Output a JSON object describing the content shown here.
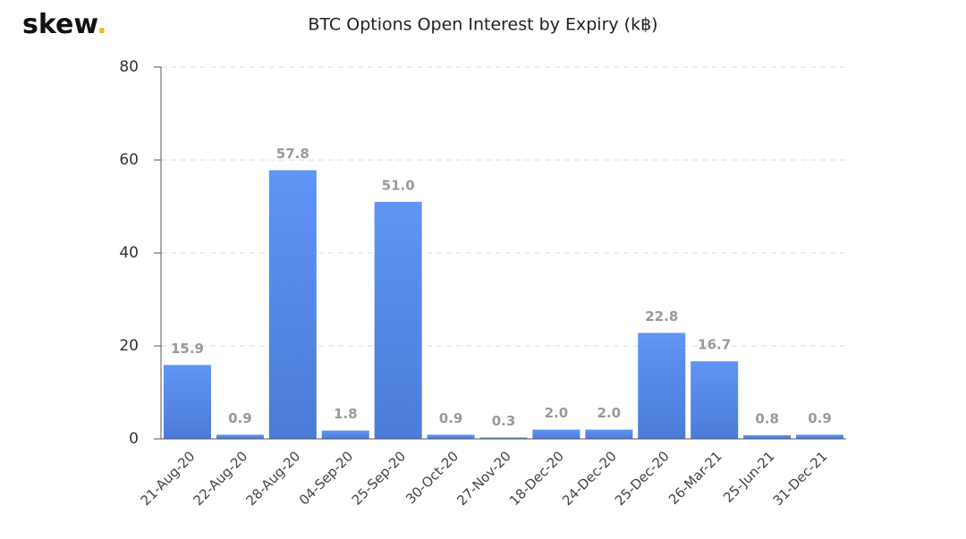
{
  "logo": {
    "text": "skew",
    "dot": "."
  },
  "chart_data": {
    "type": "bar",
    "title": "BTC Options Open Interest by Expiry (k฿)",
    "categories": [
      "21-Aug-20",
      "22-Aug-20",
      "28-Aug-20",
      "04-Sep-20",
      "25-Sep-20",
      "30-Oct-20",
      "27-Nov-20",
      "18-Dec-20",
      "24-Dec-20",
      "25-Dec-20",
      "26-Mar-21",
      "25-Jun-21",
      "31-Dec-21"
    ],
    "values": [
      15.9,
      0.9,
      57.8,
      1.8,
      51.0,
      0.9,
      0.3,
      2.0,
      2.0,
      22.8,
      16.7,
      0.8,
      0.9
    ],
    "value_labels": [
      "15.9",
      "0.9",
      "57.8",
      "1.8",
      "51.0",
      "0.9",
      "0.3",
      "2.0",
      "2.0",
      "22.8",
      "16.7",
      "0.8",
      "0.9"
    ],
    "color": "#5b8ff0",
    "ylim": [
      0,
      80
    ],
    "yticks": [
      0,
      20,
      40,
      60,
      80
    ],
    "grid": true
  }
}
